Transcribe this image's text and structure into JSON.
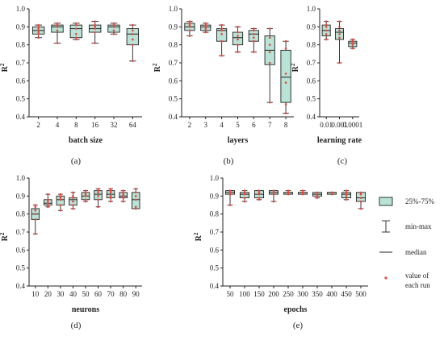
{
  "colors": {
    "box_fill": "#b8e3d6",
    "box_stroke": "#222222",
    "run_point": "#e8453c"
  },
  "legend": {
    "items": [
      {
        "key": "box",
        "label": "25%-75%"
      },
      {
        "key": "minmax",
        "label": "min-max"
      },
      {
        "key": "median",
        "label": "median"
      },
      {
        "key": "point",
        "label": "value of each run",
        "lines": [
          "value of",
          "each run"
        ]
      }
    ]
  },
  "chart_data": [
    {
      "type": "box",
      "panel_label": "(a)",
      "xlabel": "batch size",
      "ylabel": "R",
      "ylabel_sup": "2",
      "ylim": [
        0.4,
        1.0
      ],
      "yticks": [
        "0.4",
        "0.5",
        "0.6",
        "0.7",
        "0.8",
        "0.9",
        "1.0"
      ],
      "categories": [
        "2",
        "4",
        "8",
        "16",
        "32",
        "64"
      ],
      "boxes": [
        {
          "min": 0.84,
          "q1": 0.86,
          "median": 0.88,
          "q3": 0.9,
          "max": 0.91,
          "runs": [
            0.84,
            0.86,
            0.87,
            0.88,
            0.89,
            0.9,
            0.91
          ]
        },
        {
          "min": 0.81,
          "q1": 0.87,
          "median": 0.9,
          "q3": 0.91,
          "max": 0.92,
          "runs": [
            0.81,
            0.88,
            0.9,
            0.91,
            0.91,
            0.92
          ]
        },
        {
          "min": 0.83,
          "q1": 0.84,
          "median": 0.89,
          "q3": 0.91,
          "max": 0.92,
          "runs": [
            0.83,
            0.84,
            0.86,
            0.89,
            0.91,
            0.92
          ]
        },
        {
          "min": 0.81,
          "q1": 0.87,
          "median": 0.89,
          "q3": 0.91,
          "max": 0.93,
          "runs": [
            0.81,
            0.87,
            0.89,
            0.9,
            0.91,
            0.93
          ]
        },
        {
          "min": 0.86,
          "q1": 0.87,
          "median": 0.9,
          "q3": 0.91,
          "max": 0.92,
          "runs": [
            0.86,
            0.88,
            0.9,
            0.91,
            0.92
          ]
        },
        {
          "min": 0.71,
          "q1": 0.8,
          "median": 0.86,
          "q3": 0.89,
          "max": 0.91,
          "runs": [
            0.71,
            0.8,
            0.83,
            0.86,
            0.88,
            0.91
          ]
        }
      ]
    },
    {
      "type": "box",
      "panel_label": "(b)",
      "xlabel": "layers",
      "ylabel": "R",
      "ylabel_sup": "2",
      "ylim": [
        0.4,
        1.0
      ],
      "yticks": [
        "0.4",
        "0.5",
        "0.6",
        "0.7",
        "0.8",
        "0.9",
        "1.0"
      ],
      "categories": [
        "2",
        "3",
        "4",
        "5",
        "6",
        "7",
        "8"
      ],
      "boxes": [
        {
          "min": 0.85,
          "q1": 0.88,
          "median": 0.9,
          "q3": 0.92,
          "max": 0.93,
          "runs": [
            0.85,
            0.88,
            0.9,
            0.91,
            0.92,
            0.93
          ]
        },
        {
          "min": 0.87,
          "q1": 0.88,
          "median": 0.9,
          "q3": 0.91,
          "max": 0.92,
          "runs": [
            0.87,
            0.89,
            0.9,
            0.91,
            0.92
          ]
        },
        {
          "min": 0.74,
          "q1": 0.82,
          "median": 0.88,
          "q3": 0.89,
          "max": 0.91,
          "runs": [
            0.74,
            0.82,
            0.86,
            0.88,
            0.89,
            0.91
          ]
        },
        {
          "min": 0.76,
          "q1": 0.8,
          "median": 0.84,
          "q3": 0.87,
          "max": 0.9,
          "runs": [
            0.76,
            0.8,
            0.83,
            0.85,
            0.87,
            0.9
          ]
        },
        {
          "min": 0.76,
          "q1": 0.82,
          "median": 0.86,
          "q3": 0.88,
          "max": 0.89,
          "runs": [
            0.76,
            0.82,
            0.84,
            0.86,
            0.88,
            0.89
          ]
        },
        {
          "min": 0.48,
          "q1": 0.69,
          "median": 0.77,
          "q3": 0.85,
          "max": 0.89,
          "runs": [
            0.48,
            0.7,
            0.76,
            0.8,
            0.84,
            0.89
          ]
        },
        {
          "min": 0.42,
          "q1": 0.48,
          "median": 0.62,
          "q3": 0.77,
          "max": 0.82,
          "runs": [
            0.42,
            0.47,
            0.59,
            0.64,
            0.78,
            0.82
          ]
        }
      ]
    },
    {
      "type": "box",
      "panel_label": "(c)",
      "xlabel": "learning rate",
      "ylabel": "R",
      "ylabel_sup": "2",
      "ylim": [
        0.4,
        1.0
      ],
      "yticks": [
        "0.4",
        "0.5",
        "0.6",
        "0.7",
        "0.8",
        "0.9",
        "1.0"
      ],
      "categories": [
        "0.01",
        "0.001",
        "0.0001"
      ],
      "boxes": [
        {
          "min": 0.83,
          "q1": 0.85,
          "median": 0.88,
          "q3": 0.91,
          "max": 0.93,
          "runs": [
            0.83,
            0.86,
            0.88,
            0.9,
            0.91,
            0.93
          ]
        },
        {
          "min": 0.7,
          "q1": 0.83,
          "median": 0.87,
          "q3": 0.89,
          "max": 0.93,
          "runs": [
            0.7,
            0.84,
            0.86,
            0.88,
            0.9,
            0.93
          ]
        },
        {
          "min": 0.78,
          "q1": 0.79,
          "median": 0.81,
          "q3": 0.82,
          "max": 0.83,
          "runs": [
            0.78,
            0.8,
            0.81,
            0.82,
            0.83
          ]
        }
      ]
    },
    {
      "type": "box",
      "panel_label": "(d)",
      "xlabel": "neurons",
      "ylabel": "R",
      "ylabel_sup": "2",
      "ylim": [
        0.4,
        1.0
      ],
      "yticks": [
        "0.4",
        "0.5",
        "0.6",
        "0.7",
        "0.8",
        "0.9",
        "1.0"
      ],
      "categories": [
        "10",
        "20",
        "30",
        "40",
        "50",
        "60",
        "70",
        "80",
        "90"
      ],
      "boxes": [
        {
          "min": 0.69,
          "q1": 0.77,
          "median": 0.8,
          "q3": 0.83,
          "max": 0.85,
          "runs": [
            0.69,
            0.77,
            0.8,
            0.82,
            0.84,
            0.85
          ]
        },
        {
          "min": 0.84,
          "q1": 0.85,
          "median": 0.86,
          "q3": 0.88,
          "max": 0.91,
          "runs": [
            0.84,
            0.85,
            0.86,
            0.87,
            0.88,
            0.91
          ]
        },
        {
          "min": 0.82,
          "q1": 0.85,
          "median": 0.88,
          "q3": 0.9,
          "max": 0.91,
          "runs": [
            0.82,
            0.85,
            0.88,
            0.89,
            0.9,
            0.91
          ]
        },
        {
          "min": 0.83,
          "q1": 0.85,
          "median": 0.88,
          "q3": 0.89,
          "max": 0.92,
          "runs": [
            0.83,
            0.85,
            0.87,
            0.89,
            0.9,
            0.92
          ]
        },
        {
          "min": 0.87,
          "q1": 0.88,
          "median": 0.9,
          "q3": 0.92,
          "max": 0.93,
          "runs": [
            0.87,
            0.88,
            0.9,
            0.91,
            0.92,
            0.93
          ]
        },
        {
          "min": 0.84,
          "q1": 0.88,
          "median": 0.91,
          "q3": 0.93,
          "max": 0.94,
          "runs": [
            0.84,
            0.88,
            0.9,
            0.92,
            0.93,
            0.94
          ]
        },
        {
          "min": 0.87,
          "q1": 0.89,
          "median": 0.91,
          "q3": 0.93,
          "max": 0.94,
          "runs": [
            0.87,
            0.89,
            0.9,
            0.92,
            0.93,
            0.94
          ]
        },
        {
          "min": 0.87,
          "q1": 0.89,
          "median": 0.9,
          "q3": 0.92,
          "max": 0.93,
          "runs": [
            0.87,
            0.89,
            0.9,
            0.91,
            0.92,
            0.93
          ]
        },
        {
          "min": 0.83,
          "q1": 0.83,
          "median": 0.88,
          "q3": 0.92,
          "max": 0.94,
          "runs": [
            0.83,
            0.84,
            0.88,
            0.9,
            0.92,
            0.94
          ]
        }
      ]
    },
    {
      "type": "box",
      "panel_label": "(e)",
      "xlabel": "epochs",
      "ylabel": "R",
      "ylabel_sup": "2",
      "ylim": [
        0.4,
        1.0
      ],
      "yticks": [
        "0.4",
        "0.5",
        "0.6",
        "0.7",
        "0.8",
        "0.9",
        "1.0"
      ],
      "categories": [
        "50",
        "100",
        "150",
        "200",
        "250",
        "300",
        "350",
        "400",
        "450",
        "500"
      ],
      "boxes": [
        {
          "min": 0.85,
          "q1": 0.91,
          "median": 0.92,
          "q3": 0.93,
          "max": 0.93,
          "runs": [
            0.85,
            0.91,
            0.92,
            0.93
          ]
        },
        {
          "min": 0.87,
          "q1": 0.89,
          "median": 0.91,
          "q3": 0.92,
          "max": 0.93,
          "runs": [
            0.87,
            0.89,
            0.91,
            0.92,
            0.93
          ]
        },
        {
          "min": 0.88,
          "q1": 0.89,
          "median": 0.91,
          "q3": 0.93,
          "max": 0.93,
          "runs": [
            0.88,
            0.89,
            0.91,
            0.92,
            0.93
          ]
        },
        {
          "min": 0.87,
          "q1": 0.91,
          "median": 0.92,
          "q3": 0.93,
          "max": 0.93,
          "runs": [
            0.87,
            0.91,
            0.92,
            0.93
          ]
        },
        {
          "min": 0.91,
          "q1": 0.91,
          "median": 0.92,
          "q3": 0.92,
          "max": 0.93,
          "runs": [
            0.91,
            0.92,
            0.92,
            0.93
          ]
        },
        {
          "min": 0.91,
          "q1": 0.91,
          "median": 0.92,
          "q3": 0.92,
          "max": 0.93,
          "runs": [
            0.91,
            0.92,
            0.92,
            0.93
          ]
        },
        {
          "min": 0.89,
          "q1": 0.9,
          "median": 0.91,
          "q3": 0.92,
          "max": 0.92,
          "runs": [
            0.89,
            0.9,
            0.91,
            0.92
          ]
        },
        {
          "min": 0.91,
          "q1": 0.91,
          "median": 0.92,
          "q3": 0.92,
          "max": 0.92,
          "runs": [
            0.91,
            0.92,
            0.92
          ]
        },
        {
          "min": 0.88,
          "q1": 0.89,
          "median": 0.91,
          "q3": 0.92,
          "max": 0.93,
          "runs": [
            0.88,
            0.9,
            0.91,
            0.92,
            0.93
          ]
        },
        {
          "min": 0.83,
          "q1": 0.87,
          "median": 0.89,
          "q3": 0.92,
          "max": 0.92,
          "runs": [
            0.83,
            0.87,
            0.89,
            0.91,
            0.92
          ]
        }
      ]
    }
  ]
}
